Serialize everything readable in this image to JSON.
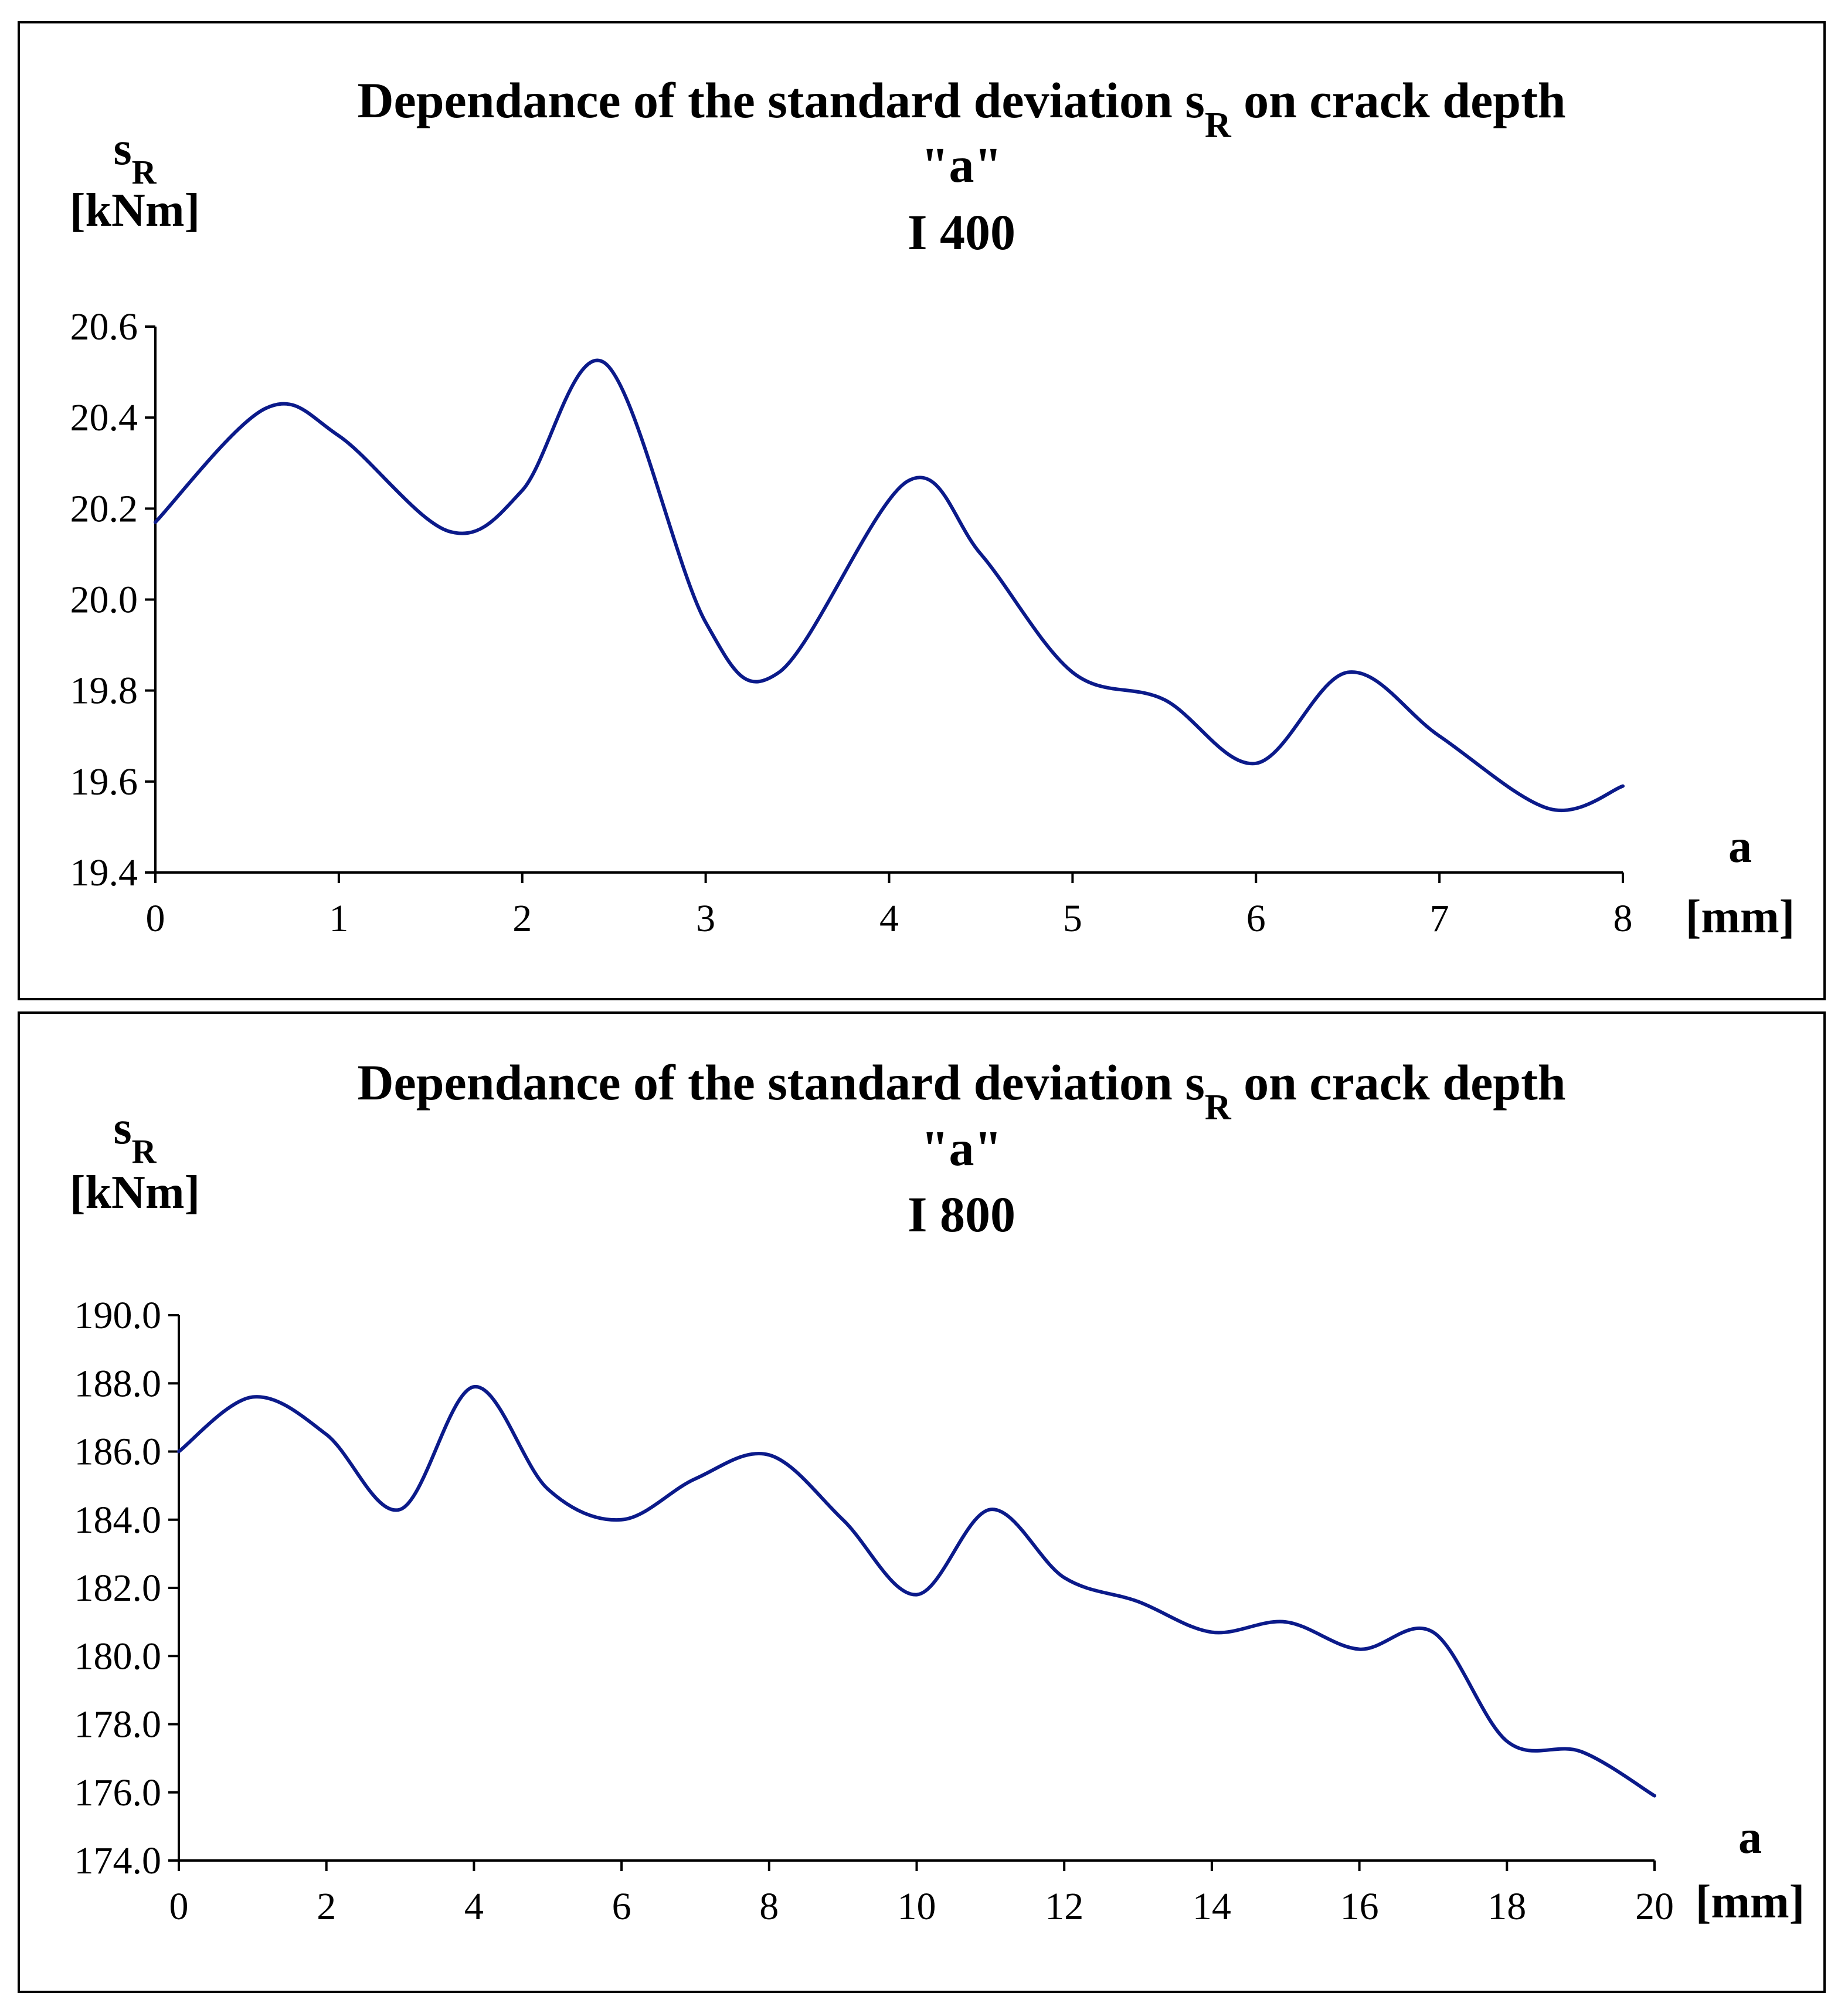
{
  "chart_data": [
    {
      "type": "line",
      "title": "Dependance of the standard deviation sR on crack depth \"a\" I 400",
      "title_lines": [
        "Dependance of the standard deviation s",
        "R",
        " on crack depth",
        "\"a\"",
        "I 400"
      ],
      "ylabel": "sR [kNm]",
      "ylabel_main": "s",
      "ylabel_sub": "R",
      "ylabel_unit": "[kNm]",
      "xlabel": "a [mm]",
      "xlabel_main": "a",
      "xlabel_unit": "[mm]",
      "xlim": [
        0,
        8
      ],
      "ylim": [
        19.4,
        20.6
      ],
      "x_ticks": [
        0,
        1,
        2,
        3,
        4,
        5,
        6,
        7,
        8
      ],
      "x_tick_labels": [
        "0",
        "1",
        "2",
        "3",
        "4",
        "5",
        "6",
        "7",
        "8"
      ],
      "y_ticks": [
        19.4,
        19.6,
        19.8,
        20.0,
        20.2,
        20.4,
        20.6
      ],
      "y_tick_labels": [
        "19.4",
        "19.6",
        "19.8",
        "20.0",
        "20.2",
        "20.4",
        "20.6"
      ],
      "grid": false,
      "series": [
        {
          "name": "I 400",
          "color": "#0b1a8a",
          "x": [
            0,
            0.6,
            1.0,
            1.6,
            2.0,
            2.45,
            3.0,
            3.4,
            4.1,
            4.5,
            5.0,
            5.5,
            6.0,
            6.5,
            7.0,
            7.6,
            8.0
          ],
          "y": [
            20.17,
            20.42,
            20.36,
            20.15,
            20.24,
            20.52,
            19.95,
            19.84,
            20.26,
            20.1,
            19.84,
            19.78,
            19.64,
            19.84,
            19.7,
            19.54,
            19.59
          ]
        }
      ]
    },
    {
      "type": "line",
      "title": "Dependance of the standard deviation sR on crack depth \"a\" I 800",
      "title_lines": [
        "Dependance of the standard deviation s",
        "R",
        " on crack depth",
        "\"a\"",
        "I 800"
      ],
      "ylabel": "sR [kNm]",
      "ylabel_main": "s",
      "ylabel_sub": "R",
      "ylabel_unit": "[kNm]",
      "xlabel": "a [mm]",
      "xlabel_main": "a",
      "xlabel_unit": "[mm]",
      "xlim": [
        0,
        20
      ],
      "ylim": [
        174.0,
        190.0
      ],
      "x_ticks": [
        0,
        2,
        4,
        6,
        8,
        10,
        12,
        14,
        16,
        18,
        20
      ],
      "x_tick_labels": [
        "0",
        "2",
        "4",
        "6",
        "8",
        "10",
        "12",
        "14",
        "16",
        "18",
        "20"
      ],
      "y_ticks": [
        174,
        176,
        178,
        180,
        182,
        184,
        186,
        188,
        190
      ],
      "y_tick_labels": [
        "174.0",
        "176.0",
        "178.0",
        "180.0",
        "182.0",
        "184.0",
        "186.0",
        "188.0",
        "190.0"
      ],
      "grid": false,
      "series": [
        {
          "name": "I 800",
          "color": "#0b1a8a",
          "x": [
            0,
            1,
            2,
            3,
            4,
            5,
            6,
            7,
            8,
            9,
            10,
            11,
            12,
            13,
            14,
            15,
            16,
            17,
            18,
            19,
            20
          ],
          "y": [
            186.0,
            187.6,
            186.5,
            184.3,
            187.9,
            184.9,
            184.0,
            185.2,
            185.9,
            184.0,
            181.8,
            184.3,
            182.3,
            181.6,
            180.7,
            181.0,
            180.2,
            180.7,
            177.5,
            177.2,
            175.9
          ]
        }
      ]
    }
  ]
}
